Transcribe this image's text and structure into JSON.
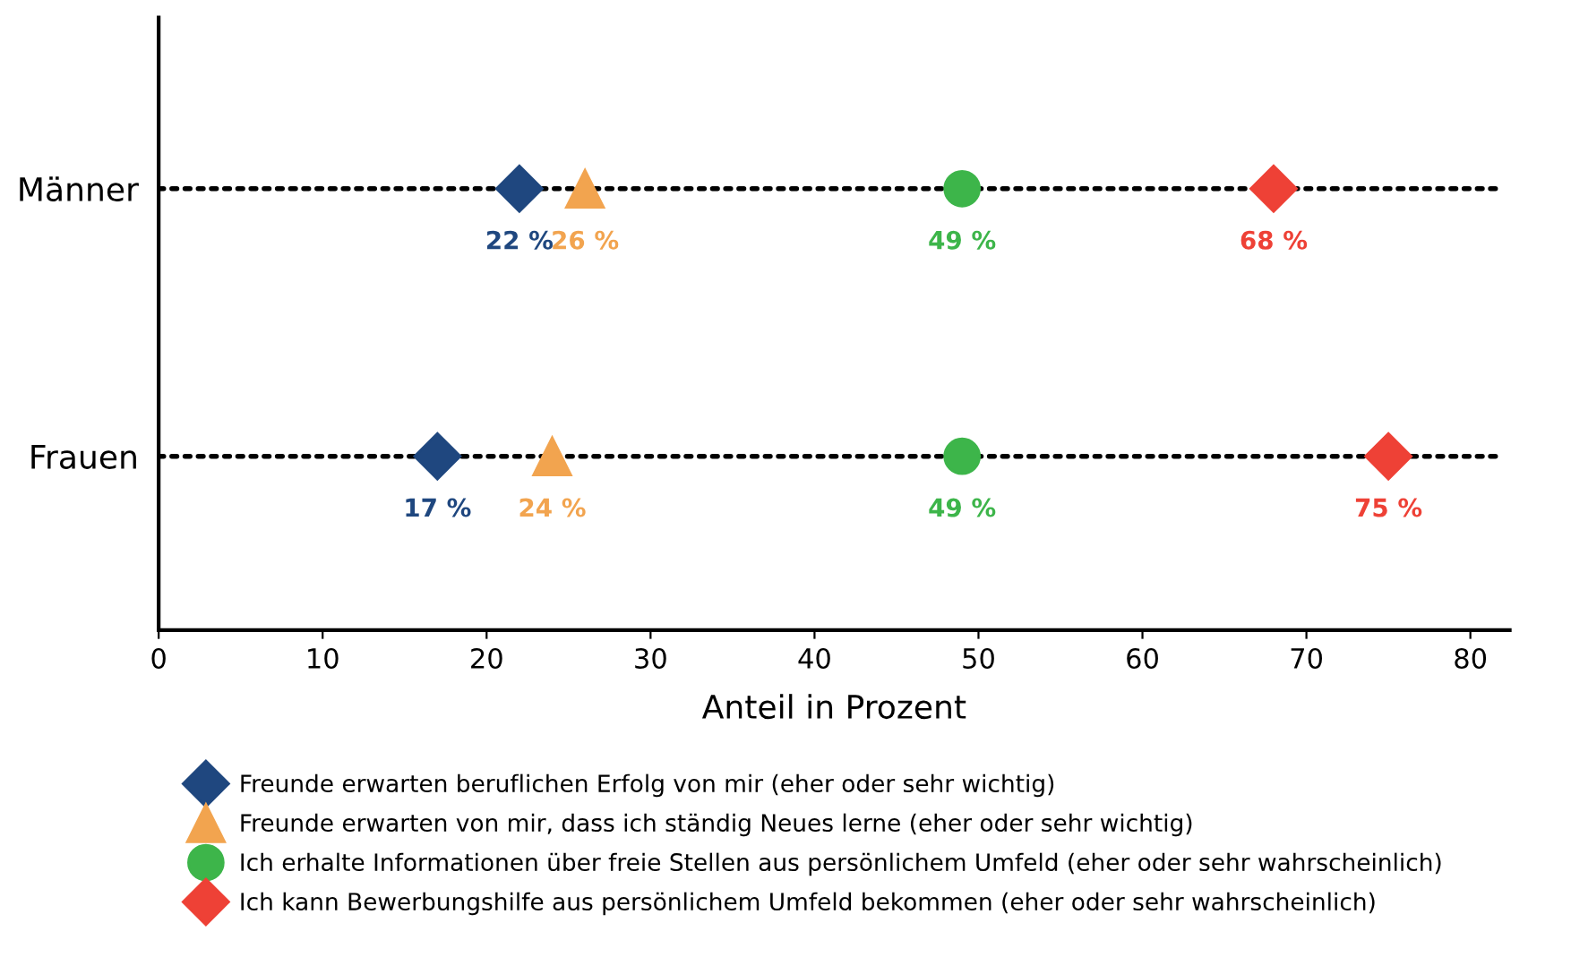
{
  "chart_data": {
    "type": "scatter",
    "orientation": "horizontal",
    "xlabel": "Anteil in Prozent",
    "categories": [
      "Männer",
      "Frauen"
    ],
    "series": [
      {
        "name": "Freunde erwarten beruflichen Erfolg von mir (eher oder sehr wichtig)",
        "color": "#1f477f",
        "marker": "diamond",
        "values": [
          22,
          17
        ],
        "value_labels": [
          "22 %",
          "17 %"
        ]
      },
      {
        "name": "Freunde erwarten von mir, dass ich ständig Neues lerne (eher oder sehr wichtig)",
        "color": "#f2a44f",
        "marker": "triangle",
        "values": [
          26,
          24
        ],
        "value_labels": [
          "26 %",
          "24 %"
        ]
      },
      {
        "name": "Ich erhalte Informationen über freie Stellen aus persönlichem Umfeld (eher oder sehr wahrscheinlich)",
        "color": "#3db54a",
        "marker": "circle",
        "values": [
          49,
          49
        ],
        "value_labels": [
          "49 %",
          "49 %"
        ]
      },
      {
        "name": "Ich kann Bewerbungshilfe aus persönlichem Umfeld bekommen (eher oder sehr wahrscheinlich)",
        "color": "#ee4136",
        "marker": "diamond",
        "values": [
          68,
          75
        ],
        "value_labels": [
          "68 %",
          "75 %"
        ]
      }
    ],
    "xlim": [
      0,
      82.4
    ],
    "xticks": [
      0,
      10,
      20,
      30,
      40,
      50,
      60,
      70,
      80
    ],
    "grid": "y",
    "line_style": "dotted",
    "legend": "bottom"
  }
}
